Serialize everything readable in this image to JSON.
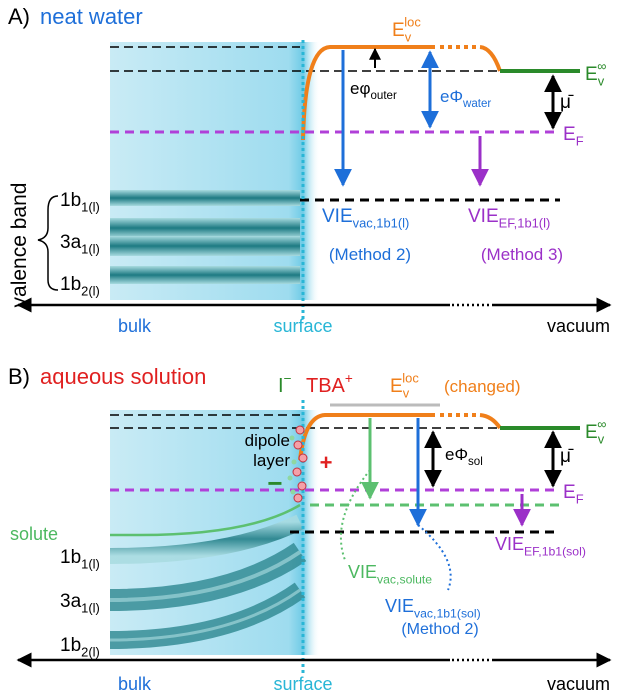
{
  "panel_a": {
    "label": "A)",
    "title": "neat water",
    "e_v_loc": {
      "text": "E",
      "sub": "v",
      "sup": "loc"
    },
    "e_v_inf": {
      "text": "E",
      "sub": "v",
      "sup": "∞"
    },
    "e_phi_outer": {
      "text": "eφ",
      "sub": "outer"
    },
    "e_phi_water": {
      "text": "eΦ",
      "sub": "water"
    },
    "mu": "μ̄",
    "e_f": {
      "text": "E",
      "sub": "F"
    },
    "axis_label": "valence band",
    "bands": [
      {
        "text": "1b",
        "sub": "1(l)"
      },
      {
        "text": "3a",
        "sub": "1(l)"
      },
      {
        "text": "1b",
        "sub": "2(l)"
      }
    ],
    "vie_vac": {
      "text": "VIE",
      "sub": "vac,1b1(l)"
    },
    "vie_vac_method": "(Method 2)",
    "vie_ef": {
      "text": "VIE",
      "sub": "EF,1b1(l)"
    },
    "vie_ef_method": "(Method 3)",
    "regions": [
      "bulk",
      "surface",
      "vacuum"
    ]
  },
  "panel_b": {
    "label": "B)",
    "title": "aqueous solution",
    "anion": {
      "text": "I",
      "sup": "−"
    },
    "cation": {
      "text": "TBA",
      "sup": "+"
    },
    "e_v_loc": {
      "text": "E",
      "sub": "v",
      "sup": "loc"
    },
    "changed": "(changed)",
    "e_v_inf": {
      "text": "E",
      "sub": "v",
      "sup": "∞"
    },
    "dipole": [
      "dipole",
      "layer"
    ],
    "minus": "−",
    "plus": "+",
    "e_phi_sol": {
      "text": "eΦ",
      "sub": "sol"
    },
    "mu": "μ̄",
    "e_f": {
      "text": "E",
      "sub": "F"
    },
    "solute": "solute",
    "bands": [
      {
        "text": "1b",
        "sub": "1(l)"
      },
      {
        "text": "3a",
        "sub": "1(l)"
      },
      {
        "text": "1b",
        "sub": "2(l)"
      }
    ],
    "vie_solute": {
      "text": "VIE",
      "sub": "vac,solute"
    },
    "vie_vac": {
      "text": "VIE",
      "sub": "vac,1b1(sol)"
    },
    "vie_vac_method": "(Method 2)",
    "vie_ef": {
      "text": "VIE",
      "sub": "EF,1b1(sol)"
    },
    "regions": [
      "bulk",
      "surface",
      "vacuum"
    ]
  }
}
